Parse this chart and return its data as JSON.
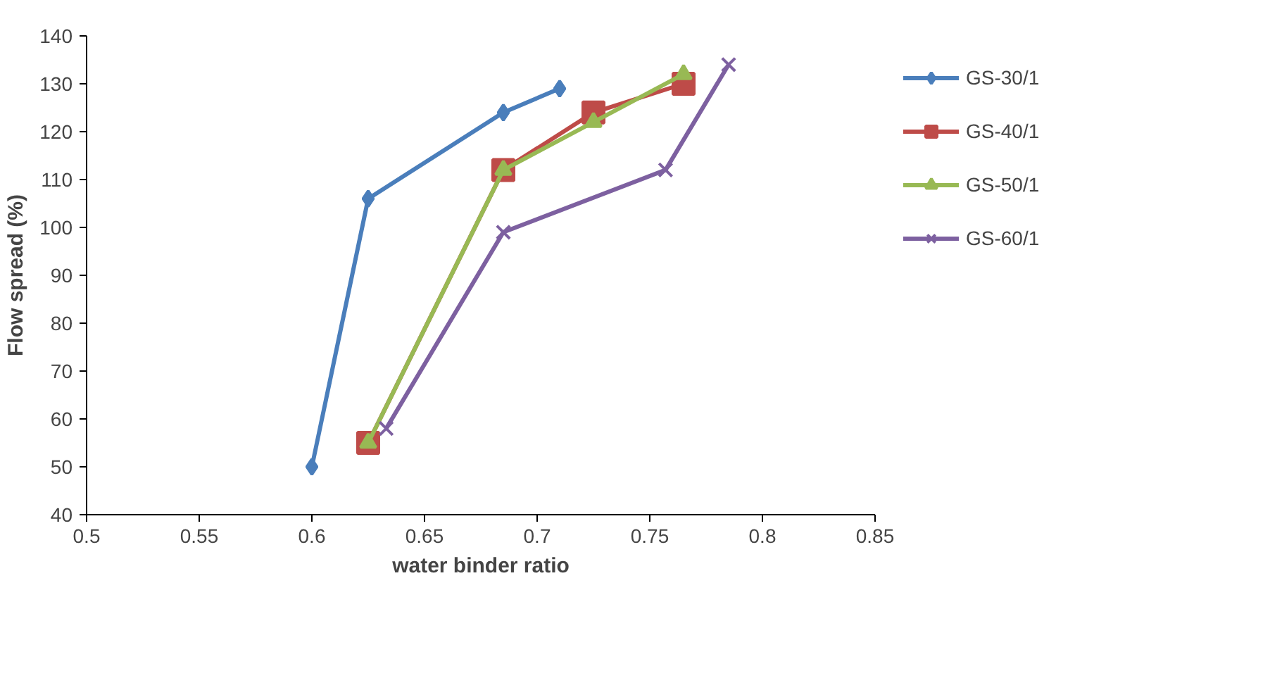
{
  "chart_data": {
    "type": "line",
    "xlabel": "water binder ratio",
    "ylabel": "Flow spread (%)",
    "xlim": [
      0.5,
      0.85
    ],
    "xticks": [
      0.5,
      0.55,
      0.6,
      0.65,
      0.7,
      0.75,
      0.8,
      0.85
    ],
    "ylim": [
      40,
      140
    ],
    "yticks": [
      40,
      50,
      60,
      70,
      80,
      90,
      100,
      110,
      120,
      130,
      140
    ],
    "grid": false,
    "legend": "right",
    "series": [
      {
        "name": "GS-30/1",
        "color": "#4a7ebb",
        "marker": "diamond",
        "x": [
          0.6,
          0.625,
          0.685,
          0.71
        ],
        "values": [
          50,
          106,
          124,
          129
        ]
      },
      {
        "name": "GS-40/1",
        "color": "#be4b48",
        "marker": "square",
        "x": [
          0.625,
          0.685,
          0.725,
          0.765
        ],
        "values": [
          55,
          112,
          124,
          130
        ]
      },
      {
        "name": "GS-50/1",
        "color": "#98b954",
        "marker": "triangle",
        "x": [
          0.625,
          0.685,
          0.725,
          0.765
        ],
        "values": [
          55,
          112,
          122,
          132
        ]
      },
      {
        "name": "GS-60/1",
        "color": "#7d60a0",
        "marker": "cross",
        "x": [
          0.633,
          0.685,
          0.757,
          0.785
        ],
        "values": [
          58,
          99,
          112,
          134
        ]
      }
    ]
  }
}
